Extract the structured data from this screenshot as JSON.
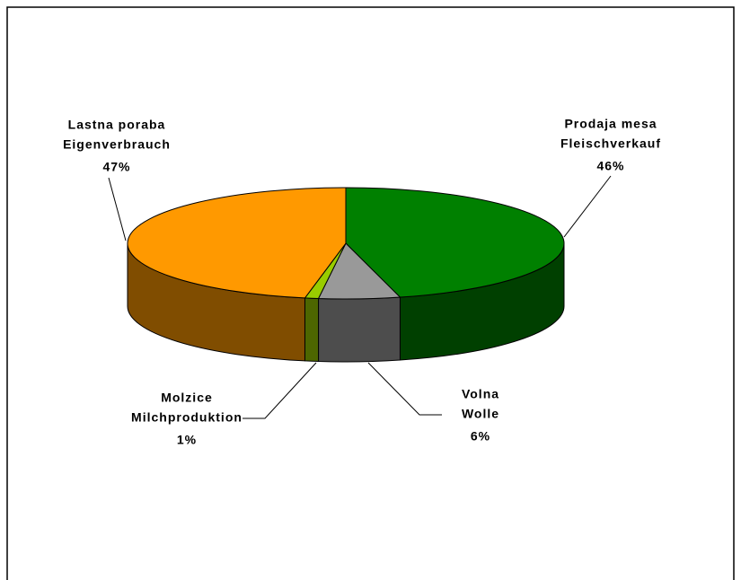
{
  "chart_data": {
    "type": "pie3d",
    "categories": [
      [
        "Prodaja mesa",
        "Fleischverkauf"
      ],
      [
        "Volna",
        "Wolle"
      ],
      [
        "Molzice",
        "Milchproduktion"
      ],
      [
        "Lastna poraba",
        "Eigenverbrauch"
      ]
    ],
    "values": [
      46,
      6,
      1,
      47
    ],
    "value_labels": [
      "46%",
      "6%",
      "1%",
      "47%"
    ],
    "colors": [
      "#008000",
      "#999999",
      "#99cc00",
      "#ff9900"
    ]
  }
}
